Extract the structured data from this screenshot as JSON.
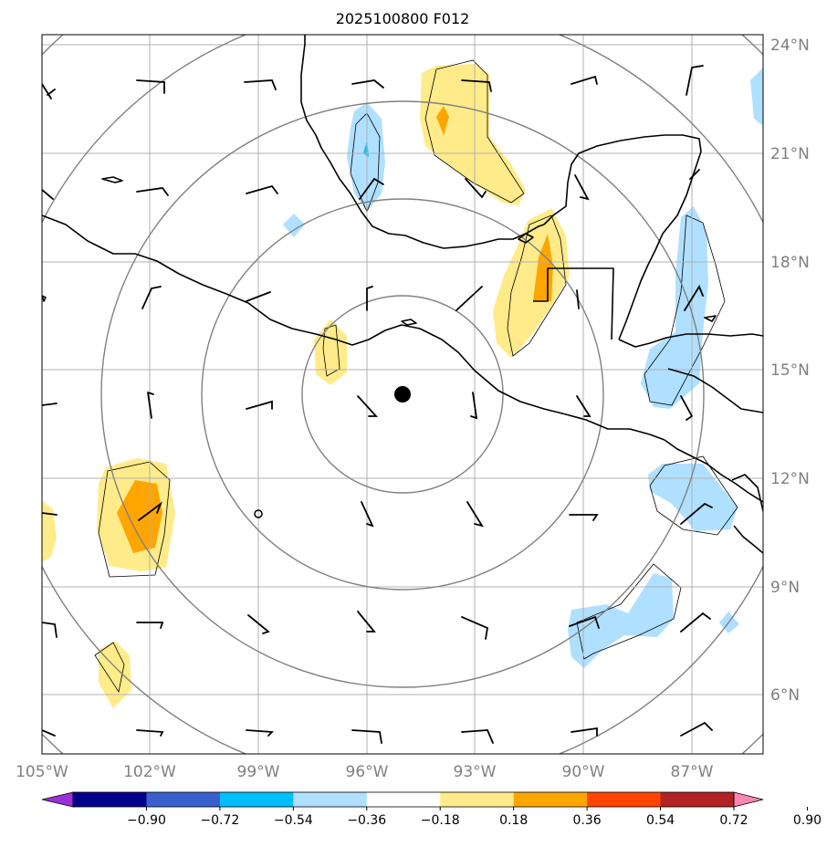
{
  "title": "2025100800 F012",
  "lat_labels": [
    "24°N",
    "21°N",
    "18°N",
    "15°N",
    "12°N",
    "9°N",
    "6°N"
  ],
  "lon_labels": [
    "105°W",
    "102°W",
    "99°W",
    "96°W",
    "93°W",
    "90°W",
    "87°W"
  ],
  "colorbar": {
    "ticks": [
      "−0.90",
      "−0.72",
      "−0.54",
      "−0.36",
      "−0.18",
      "0.18",
      "0.36",
      "0.54",
      "0.72",
      "0.90"
    ],
    "colors": [
      "#9b30d9",
      "#00008b",
      "#3a5fcd",
      "#00bfff",
      "#b0e0ff",
      "#ffffff",
      "#ffeb8a",
      "#ffa500",
      "#ff4500",
      "#b22222",
      "#ff85b4"
    ]
  },
  "storm_center": {
    "lon": -94.9,
    "lat": 14.3
  },
  "colors": {
    "positive_light": "#ffeb8a",
    "positive_mid": "#ffa500",
    "negative_light": "#b0e0ff",
    "negative_mid": "#00bfff",
    "coast": "#000000",
    "grid": "#b0b0b0",
    "rings": "#808080",
    "labels": "#808080"
  }
}
